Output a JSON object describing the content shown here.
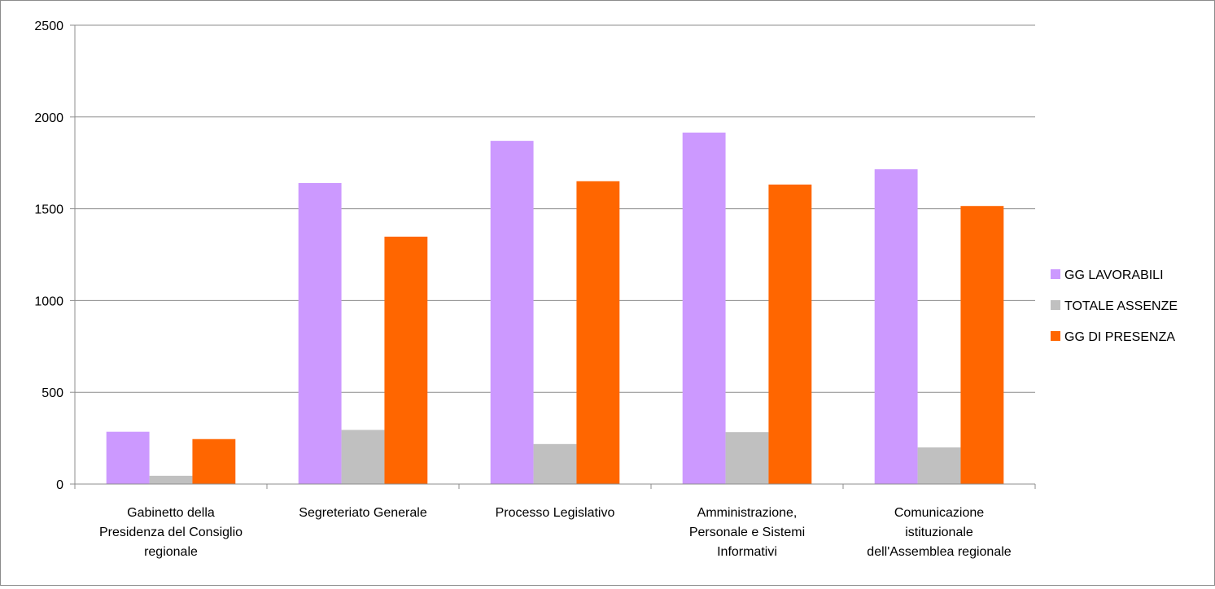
{
  "chart_data": {
    "type": "bar",
    "categories": [
      [
        "Gabinetto della",
        "Presidenza del Consiglio",
        "regionale"
      ],
      [
        "Segreteriato Generale"
      ],
      [
        "Processo Legislativo"
      ],
      [
        "Amministrazione,",
        "Personale e Sistemi",
        "Informativi"
      ],
      [
        "Comunicazione",
        "istituzionale",
        "dell'Assemblea regionale"
      ]
    ],
    "series": [
      {
        "name": "GG LAVORABILI",
        "color": "#cc99ff",
        "values": [
          285,
          1640,
          1870,
          1915,
          1715
        ]
      },
      {
        "name": "TOTALE ASSENZE",
        "color": "#c0c0c0",
        "values": [
          45,
          295,
          218,
          283,
          200
        ]
      },
      {
        "name": "GG DI PRESENZA",
        "color": "#ff6600",
        "values": [
          245,
          1348,
          1650,
          1632,
          1515
        ]
      }
    ],
    "ylim": [
      0,
      2500
    ],
    "yticks": [
      "0",
      "500",
      "1000",
      "1500",
      "2000",
      "2500"
    ],
    "grid": true,
    "legend_position": "right"
  }
}
